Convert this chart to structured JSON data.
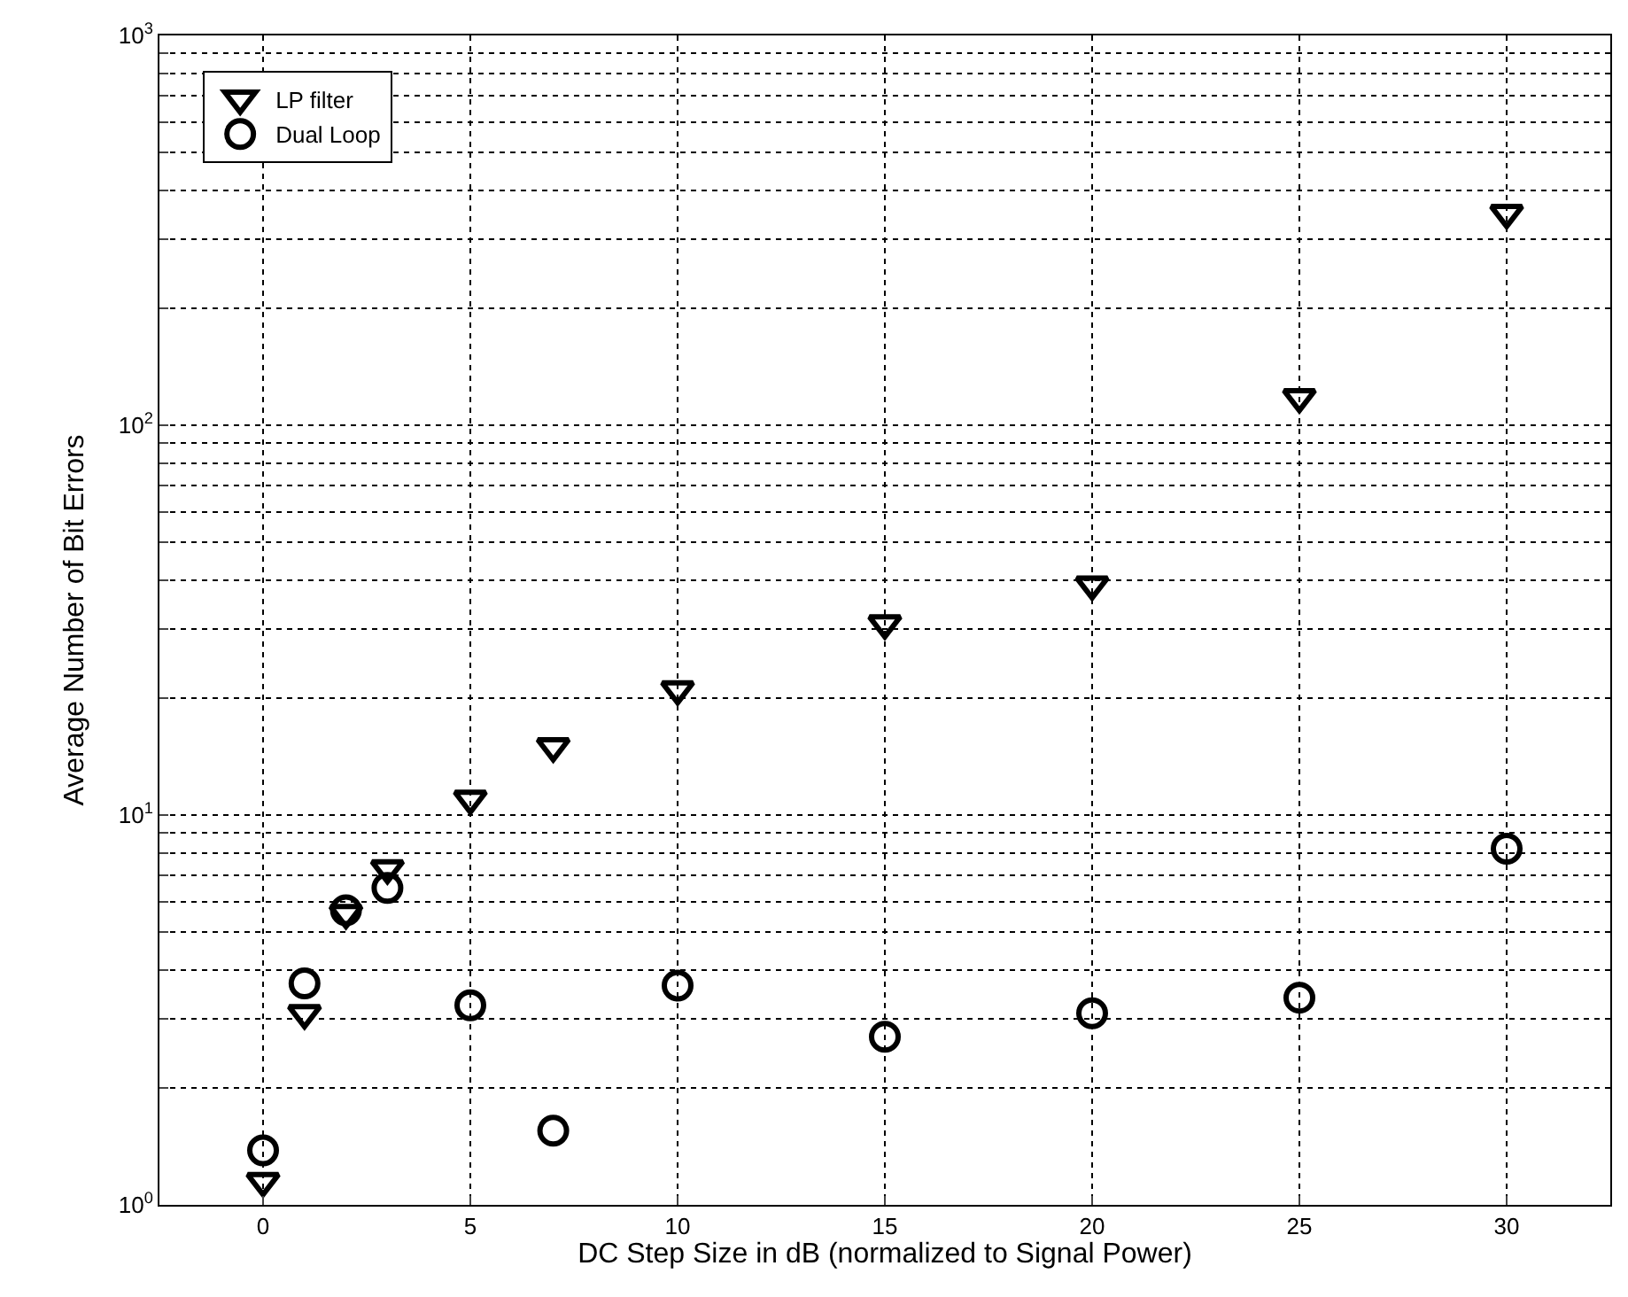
{
  "chart_data": {
    "type": "scatter",
    "xlabel": "DC Step Size in dB (normalized to Signal Power)",
    "ylabel": "Average Number of Bit Errors",
    "x": [
      0,
      1,
      2,
      3,
      5,
      7,
      10,
      15,
      20,
      25,
      30
    ],
    "series": [
      {
        "name": "LP filter",
        "color": "#000000",
        "marker": "triangle",
        "values": [
          1.15,
          3.1,
          5.6,
          7.3,
          11,
          15,
          21,
          31,
          39,
          118,
          350
        ]
      },
      {
        "name": "Dual Loop",
        "color": "#000000",
        "marker": "circle",
        "values": [
          1.38,
          3.7,
          5.7,
          6.5,
          3.25,
          1.55,
          3.65,
          2.7,
          3.1,
          3.4,
          8.2
        ]
      }
    ],
    "log": "y",
    "xlim": [
      -2.5,
      32.5
    ],
    "ylim": [
      1,
      1000
    ],
    "xticks": [
      0,
      5,
      10,
      15,
      20,
      25,
      30
    ],
    "yticks": [
      {
        "value": 1,
        "label": "10$^{0}$"
      },
      {
        "value": 2,
        "label": null
      },
      {
        "value": 3,
        "label": null
      },
      {
        "value": 4,
        "label": null
      },
      {
        "value": 5,
        "label": null
      },
      {
        "value": 6,
        "label": null
      },
      {
        "value": 7,
        "label": null
      },
      {
        "value": 8,
        "label": null
      },
      {
        "value": 9,
        "label": null
      },
      {
        "value": 10,
        "label": "10$^{1}$"
      },
      {
        "value": 20,
        "label": null
      },
      {
        "value": 30,
        "label": null
      },
      {
        "value": 40,
        "label": null
      },
      {
        "value": 50,
        "label": null
      },
      {
        "value": 60,
        "label": null
      },
      {
        "value": 70,
        "label": null
      },
      {
        "value": 80,
        "label": null
      },
      {
        "value": 90,
        "label": null
      },
      {
        "value": 100,
        "label": "10$^{2}$"
      },
      {
        "value": 200,
        "label": null
      },
      {
        "value": 300,
        "label": null
      },
      {
        "value": 400,
        "label": null
      },
      {
        "value": 500,
        "label": null
      },
      {
        "value": 600,
        "label": null
      },
      {
        "value": 700,
        "label": null
      },
      {
        "value": 800,
        "label": null
      },
      {
        "value": 900,
        "label": null
      },
      {
        "value": 1000,
        "label": "10$^{3}$"
      }
    ],
    "grid": true,
    "legend": "top left",
    "line_style": "dotted"
  }
}
